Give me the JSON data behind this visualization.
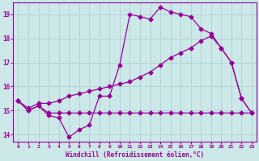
{
  "xlabel": "Windchill (Refroidissement éolien,°C)",
  "x_ticks": [
    0,
    1,
    2,
    3,
    4,
    5,
    6,
    7,
    8,
    9,
    10,
    11,
    12,
    13,
    14,
    15,
    16,
    17,
    18,
    19,
    20,
    21,
    22,
    23
  ],
  "ylim": [
    13.7,
    19.5
  ],
  "yticks": [
    14,
    15,
    16,
    17,
    18,
    19
  ],
  "line_color": "#990099",
  "bg_color": "#cce8e8",
  "grid_color": "#aacccc",
  "line1": [
    15.4,
    15.0,
    15.2,
    14.8,
    14.7,
    13.9,
    14.2,
    14.4,
    15.6,
    15.6,
    16.9,
    19.0,
    18.9,
    18.8,
    19.3,
    19.1,
    19.0,
    18.9,
    18.4,
    18.2,
    17.6,
    17.0,
    15.5,
    14.9
  ],
  "line2": [
    15.4,
    15.1,
    15.3,
    15.3,
    15.4,
    15.6,
    15.7,
    15.8,
    15.9,
    16.0,
    16.1,
    16.2,
    16.4,
    16.6,
    16.9,
    17.2,
    17.4,
    17.6,
    17.9,
    18.1,
    17.6,
    17.0,
    15.5,
    14.9
  ],
  "line3": [
    15.4,
    15.0,
    15.2,
    14.9,
    14.9,
    14.9,
    14.9,
    14.9,
    14.9,
    14.9,
    14.9,
    14.9,
    14.9,
    14.9,
    14.9,
    14.9,
    14.9,
    14.9,
    14.9,
    14.9,
    14.9,
    14.9,
    14.9,
    14.9
  ]
}
